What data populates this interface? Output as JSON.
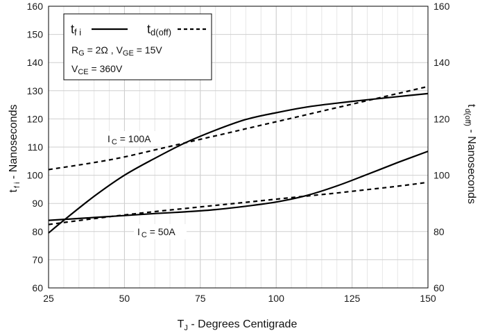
{
  "chart_data": {
    "type": "line",
    "xlabel": {
      "main": "T",
      "sub": "J",
      "rest": " - Degrees Centigrade"
    },
    "ylabel_left": {
      "main": "t",
      "sub": "f i",
      "rest": " - Nanoseconds"
    },
    "ylabel_right": {
      "main": "t",
      "sub": "d(off)",
      "rest": " - Nanoseconds"
    },
    "xlim": [
      25,
      150
    ],
    "ylim_left": [
      60,
      160
    ],
    "ylim_right": [
      60,
      160
    ],
    "xticks": [
      "25",
      "50",
      "75",
      "100",
      "125",
      "150"
    ],
    "yticks_left": [
      "60",
      "70",
      "80",
      "90",
      "100",
      "110",
      "120",
      "130",
      "140",
      "150",
      "160"
    ],
    "yticks_right": [
      "60",
      "80",
      "100",
      "120",
      "140",
      "160"
    ],
    "grid": true,
    "legend": {
      "placement": "top-left",
      "tfi": {
        "main": "t",
        "sub": "f i"
      },
      "td": {
        "main": "t",
        "sub": "d(off)"
      },
      "cond1": {
        "rg_main": "R",
        "rg_sub": "G",
        "rg_val": " = 2Ω ,  ",
        "vge_main": "V",
        "vge_sub": "GE",
        "vge_val": " = 15V"
      },
      "cond2": {
        "vce_main": "V",
        "vce_sub": "CE",
        "vce_val": " = 360V"
      }
    },
    "annotations": [
      {
        "main": "I",
        "sub": "C",
        "rest": " = 100A"
      },
      {
        "main": "I",
        "sub": "C",
        "rest": " = 50A"
      }
    ],
    "series": [
      {
        "style": "solid",
        "axis": "left",
        "curve": "IC=100A tfi",
        "x": [
          25,
          30,
          40,
          50,
          60,
          70,
          80,
          90,
          100,
          110,
          120,
          130,
          140,
          150
        ],
        "y": [
          79.5,
          84,
          92.5,
          100,
          106,
          111.5,
          116,
          119.8,
          122.2,
          124.2,
          125.6,
          126.8,
          127.9,
          129
        ]
      },
      {
        "style": "dashed",
        "axis": "right",
        "curve": "IC=100A td(off)",
        "x": [
          25,
          40,
          50,
          60,
          70,
          80,
          90,
          100,
          110,
          120,
          130,
          140,
          150
        ],
        "y": [
          102,
          104.5,
          106.5,
          109,
          111.5,
          114,
          116.5,
          119,
          121.5,
          124,
          126.5,
          129,
          131.5
        ]
      },
      {
        "style": "solid",
        "axis": "left",
        "curve": "IC=50A tfi",
        "x": [
          25,
          40,
          50,
          60,
          70,
          80,
          90,
          100,
          110,
          120,
          130,
          140,
          150
        ],
        "y": [
          84,
          85,
          85.7,
          86.4,
          87,
          87.8,
          89,
          90.5,
          92.8,
          96.2,
          100.3,
          104.5,
          108.5
        ]
      },
      {
        "style": "dashed",
        "axis": "right",
        "curve": "IC=50A td(off)",
        "x": [
          25,
          40,
          50,
          60,
          70,
          80,
          90,
          100,
          110,
          120,
          130,
          140,
          150
        ],
        "y": [
          82.5,
          84.6,
          85.9,
          87.1,
          88.2,
          89.3,
          90.4,
          91.5,
          92.6,
          93.7,
          94.9,
          96.1,
          97.5
        ]
      }
    ]
  }
}
